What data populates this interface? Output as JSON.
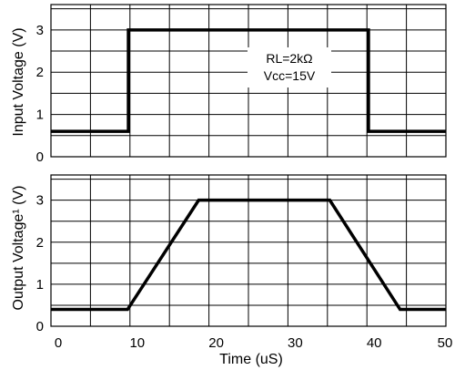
{
  "chart_data": [
    {
      "type": "line",
      "ylabel": "Input Voltage   (V)",
      "xlim": [
        0,
        50
      ],
      "ylim": [
        0,
        3.6
      ],
      "yticks": [
        0,
        1,
        2,
        3
      ],
      "grid": true,
      "series": [
        {
          "x": [
            0,
            9.8,
            9.8,
            40.2,
            40.2,
            50
          ],
          "y": [
            0.6,
            0.6,
            3.0,
            3.0,
            0.6,
            0.6
          ]
        }
      ],
      "annotations": [
        {
          "label": "RL=2kΩ"
        },
        {
          "label": "Vcc=15V"
        }
      ]
    },
    {
      "type": "line",
      "ylabel": "Output Voltage¹   (V)",
      "xlabel": "Time (uS)",
      "xlim": [
        0,
        50
      ],
      "ylim": [
        0,
        3.6
      ],
      "xticks": [
        0,
        10,
        20,
        30,
        40,
        50
      ],
      "yticks": [
        0,
        1,
        2,
        3
      ],
      "grid": true,
      "series": [
        {
          "x": [
            0,
            9.7,
            18.7,
            35.3,
            44.2,
            50
          ],
          "y": [
            0.4,
            0.4,
            3.0,
            3.0,
            0.4,
            0.4
          ]
        }
      ]
    }
  ]
}
